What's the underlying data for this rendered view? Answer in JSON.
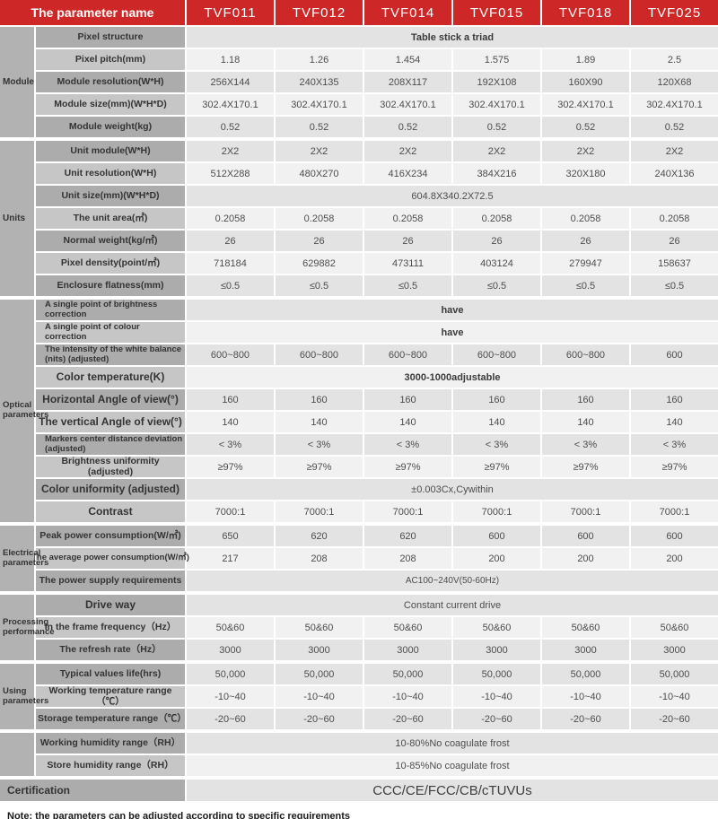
{
  "header": {
    "title": "The parameter name",
    "models": [
      "TVF011",
      "TVF012",
      "TVF014",
      "TVF015",
      "TVF018",
      "TVF025"
    ]
  },
  "sections": [
    {
      "group": "Module",
      "rows": [
        {
          "label": "Pixel structure",
          "span": "Table stick a triad",
          "spanBold": true
        },
        {
          "label": "Pixel pitch(mm)",
          "values": [
            "1.18",
            "1.26",
            "1.454",
            "1.575",
            "1.89",
            "2.5"
          ]
        },
        {
          "label": "Module resolution(W*H)",
          "values": [
            "256X144",
            "240X135",
            "208X117",
            "192X108",
            "160X90",
            "120X68"
          ]
        },
        {
          "label": "Module size(mm)(W*H*D)",
          "values": [
            "302.4X170.1",
            "302.4X170.1",
            "302.4X170.1",
            "302.4X170.1",
            "302.4X170.1",
            "302.4X170.1"
          ]
        },
        {
          "label": "Module weight(kg)",
          "values": [
            "0.52",
            "0.52",
            "0.52",
            "0.52",
            "0.52",
            "0.52"
          ]
        }
      ]
    },
    {
      "group": "Units",
      "rows": [
        {
          "label": "Unit module(W*H)",
          "values": [
            "2X2",
            "2X2",
            "2X2",
            "2X2",
            "2X2",
            "2X2"
          ]
        },
        {
          "label": "Unit resolution(W*H)",
          "values": [
            "512X288",
            "480X270",
            "416X234",
            "384X216",
            "320X180",
            "240X136"
          ]
        },
        {
          "label": "Unit size(mm)(W*H*D)",
          "span": "604.8X340.2X72.5"
        },
        {
          "label": "The unit area(㎡)",
          "values": [
            "0.2058",
            "0.2058",
            "0.2058",
            "0.2058",
            "0.2058",
            "0.2058"
          ]
        },
        {
          "label": "Normal weight(kg/㎡)",
          "values": [
            "26",
            "26",
            "26",
            "26",
            "26",
            "26"
          ]
        },
        {
          "label": "Pixel density(point/㎡)",
          "values": [
            "718184",
            "629882",
            "473111",
            "403124",
            "279947",
            "158637"
          ]
        },
        {
          "label": "Enclosure flatness(mm)",
          "values": [
            "≤0.5",
            "≤0.5",
            "≤0.5",
            "≤0.5",
            "≤0.5",
            "≤0.5"
          ]
        }
      ]
    },
    {
      "group": "Optical\nparameters",
      "rows": [
        {
          "label": "A single point of brightness correction",
          "small": true,
          "span": "have",
          "spanBold": true
        },
        {
          "label": "A single point of colour correction",
          "small": true,
          "span": "have",
          "spanBold": true
        },
        {
          "label": "The intensity of the white balance (nits) (adjusted)",
          "small": true,
          "values": [
            "600~800",
            "600~800",
            "600~800",
            "600~800",
            "600~800",
            "600"
          ]
        },
        {
          "label": "Color temperature(K)",
          "big": true,
          "span": "3000-1000adjustable",
          "spanBold": true
        },
        {
          "label": "Horizontal Angle of view(°)",
          "big": true,
          "values": [
            "160",
            "160",
            "160",
            "160",
            "160",
            "160"
          ]
        },
        {
          "label": "The vertical Angle of view(°)",
          "big": true,
          "values": [
            "140",
            "140",
            "140",
            "140",
            "140",
            "140"
          ]
        },
        {
          "label": "Markers center distance deviation (adjusted)",
          "small": true,
          "values": [
            "< 3%",
            "< 3%",
            "< 3%",
            "< 3%",
            "< 3%",
            "< 3%"
          ]
        },
        {
          "label": "Brightness uniformity (adjusted)",
          "values": [
            "≥97%",
            "≥97%",
            "≥97%",
            "≥97%",
            "≥97%",
            "≥97%"
          ]
        },
        {
          "label": "Color uniformity (adjusted)",
          "big": true,
          "span": "±0.003Cx,Cywithin"
        },
        {
          "label": "Contrast",
          "big": true,
          "values": [
            "7000:1",
            "7000:1",
            "7000:1",
            "7000:1",
            "7000:1",
            "7000:1"
          ]
        }
      ]
    },
    {
      "group": "Electrical\nparameters",
      "rows": [
        {
          "label": "Peak power consumption(W/㎡)",
          "values": [
            "650",
            "620",
            "620",
            "600",
            "600",
            "600"
          ]
        },
        {
          "label": "The average power consumption(W/㎡)",
          "tiny": true,
          "values": [
            "217",
            "208",
            "208",
            "200",
            "200",
            "200"
          ]
        },
        {
          "label": "The power supply requirements",
          "span": "AC100~240V(50-60Hz)",
          "spanSmall": true
        }
      ]
    },
    {
      "group": "Processing\nperformance",
      "rows": [
        {
          "label": "Drive way",
          "big": true,
          "span": "Constant current drive"
        },
        {
          "label": "In the frame frequency（Hz）",
          "values": [
            "50&60",
            "50&60",
            "50&60",
            "50&60",
            "50&60",
            "50&60"
          ]
        },
        {
          "label": "The refresh rate（Hz）",
          "values": [
            "3000",
            "3000",
            "3000",
            "3000",
            "3000",
            "3000"
          ]
        }
      ]
    },
    {
      "group": "Using\nparameters",
      "rows": [
        {
          "label": "Typical values life(hrs)",
          "values": [
            "50,000",
            "50,000",
            "50,000",
            "50,000",
            "50,000",
            "50,000"
          ]
        },
        {
          "label": "Working temperature range（℃）",
          "values": [
            "-10~40",
            "-10~40",
            "-10~40",
            "-10~40",
            "-10~40",
            "-10~40"
          ]
        },
        {
          "label": "Storage temperature range（℃）",
          "values": [
            "-20~60",
            "-20~60",
            "-20~60",
            "-20~60",
            "-20~60",
            "-20~60"
          ]
        }
      ]
    },
    {
      "group": "",
      "rows": [
        {
          "label": "Working humidity range（RH）",
          "span": "10-80%No coagulate frost"
        },
        {
          "label": "Store humidity range（RH）",
          "span": "10-85%No coagulate frost"
        }
      ]
    }
  ],
  "certification": {
    "label": "Certification",
    "value": "CCC/CE/FCC/CB/cTUVUs"
  },
  "note": "Note: the parameters can be adjusted according to specific requirements",
  "colors": {
    "red": "#cd2727",
    "label_dark": "#acacac",
    "label_light": "#c6c6c6",
    "group": "#b2b2b2",
    "value_dark": "#e3e3e3",
    "value_light": "#f1f1f1"
  }
}
